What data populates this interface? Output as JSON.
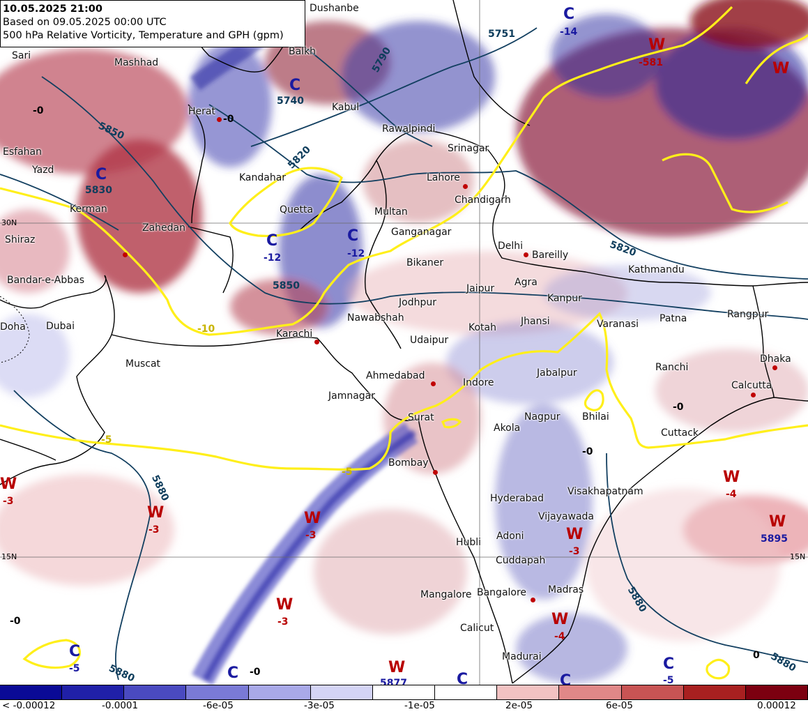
{
  "header": {
    "valid_time": "10.05.2025 21:00",
    "based_on": "Based on 09.05.2025 00:00 UTC",
    "product": "500 hPa Relative Vorticity, Temperature and GPH (gpm)"
  },
  "cities": [
    {
      "name": "Dushanbe"
    },
    {
      "name": "Balkh"
    },
    {
      "name": "Sari"
    },
    {
      "name": "Mashhad"
    },
    {
      "name": "Herat"
    },
    {
      "name": "Kabul"
    },
    {
      "name": "Rawalpindi"
    },
    {
      "name": "Esfahan"
    },
    {
      "name": "Yazd"
    },
    {
      "name": "Kandahar"
    },
    {
      "name": "Srinagar"
    },
    {
      "name": "Lahore"
    },
    {
      "name": "Chandigarh"
    },
    {
      "name": "Kerman"
    },
    {
      "name": "Quetta"
    },
    {
      "name": "Multan"
    },
    {
      "name": "Zahedan"
    },
    {
      "name": "Ganganagar"
    },
    {
      "name": "Shiraz"
    },
    {
      "name": "Delhi"
    },
    {
      "name": "Bareilly"
    },
    {
      "name": "Bikaner"
    },
    {
      "name": "Kathmandu"
    },
    {
      "name": "Bandar-e-Abbas"
    },
    {
      "name": "Jaipur"
    },
    {
      "name": "Agra"
    },
    {
      "name": "Kanpur"
    },
    {
      "name": "Jodhpur"
    },
    {
      "name": "Nawabshah"
    },
    {
      "name": "Jhansi"
    },
    {
      "name": "Varanasi"
    },
    {
      "name": "Patna"
    },
    {
      "name": "Rangpur"
    },
    {
      "name": "Doha"
    },
    {
      "name": "Dubai"
    },
    {
      "name": "Kotah"
    },
    {
      "name": "Karachi"
    },
    {
      "name": "Udaipur"
    },
    {
      "name": "Muscat"
    },
    {
      "name": "Dhaka"
    },
    {
      "name": "Ranchi"
    },
    {
      "name": "Ahmedabad"
    },
    {
      "name": "Jabalpur"
    },
    {
      "name": "Indore"
    },
    {
      "name": "Calcutta"
    },
    {
      "name": "Jamnagar"
    },
    {
      "name": "Surat"
    },
    {
      "name": "Nagpur"
    },
    {
      "name": "Bhilai"
    },
    {
      "name": "Akola"
    },
    {
      "name": "Cuttack"
    },
    {
      "name": "Bombay"
    },
    {
      "name": "Hyderabad"
    },
    {
      "name": "Visakhapatnam"
    },
    {
      "name": "Vijayawada"
    },
    {
      "name": "Adoni"
    },
    {
      "name": "Hubli"
    },
    {
      "name": "Cuddapah"
    },
    {
      "name": "Madras"
    },
    {
      "name": "Bangalore"
    },
    {
      "name": "Mangalore"
    },
    {
      "name": "Calicut"
    },
    {
      "name": "Madurai"
    }
  ],
  "systems": [
    {
      "type": "C",
      "value": "-14"
    },
    {
      "type": "W",
      "value": "-581"
    },
    {
      "type": "C",
      "value": ""
    },
    {
      "type": "C",
      "value": ""
    },
    {
      "type": "C",
      "value": "-12"
    },
    {
      "type": "C",
      "value": "-12"
    },
    {
      "type": "W",
      "value": "-3"
    },
    {
      "type": "W",
      "value": "-3"
    },
    {
      "type": "W",
      "value": "-3"
    },
    {
      "type": "W",
      "value": "-3"
    },
    {
      "type": "W",
      "value": "-3"
    },
    {
      "type": "W",
      "value": "-4"
    },
    {
      "type": "W",
      "value": "5895"
    },
    {
      "type": "W",
      "value": "-4"
    },
    {
      "type": "C",
      "value": "-5"
    },
    {
      "type": "W",
      "value": "5877"
    },
    {
      "type": "C",
      "value": ""
    },
    {
      "type": "C",
      "value": ""
    },
    {
      "type": "C",
      "value": "-5"
    },
    {
      "type": "C",
      "value": ""
    },
    {
      "type": "W",
      "value": ""
    }
  ],
  "gph_labels": [
    "5790",
    "5751",
    "5740",
    "5850",
    "5830",
    "5820",
    "5820",
    "5850",
    "5880",
    "5880",
    "5880",
    "5880"
  ],
  "temp_labels": [
    "-5",
    "-5",
    "-10",
    "-0",
    "-0",
    "-0",
    "-0",
    "0",
    "-0",
    "-0"
  ],
  "lat_labels": [
    "30N",
    "15N",
    "15N"
  ],
  "colorbar": {
    "colors": [
      "#0a0a96",
      "#2020a8",
      "#4a4ac0",
      "#7a7ad6",
      "#a9a9e8",
      "#d4d4f5",
      "#ffffff",
      "#ffffff",
      "#f2c2c2",
      "#e08888",
      "#c85454",
      "#a82020",
      "#7c0010"
    ],
    "labels": [
      "< -0.00012",
      "-0.0001",
      "-6e-05",
      "-3e-05",
      "-1e-05",
      "2e-05",
      "6e-05",
      "0.00012"
    ]
  }
}
